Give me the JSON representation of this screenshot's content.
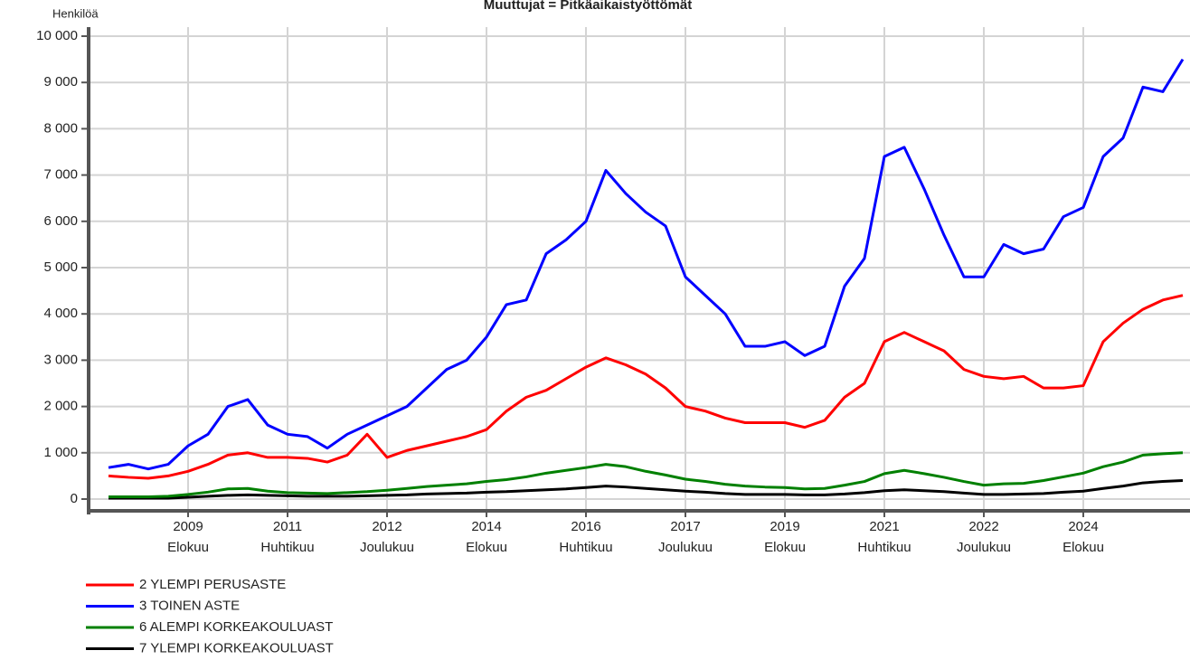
{
  "chart_data": {
    "type": "line",
    "title": "Muuttujat = Pitkäaikaistyöttömät",
    "y_label": "Henkilöä",
    "categories": [
      null,
      null,
      null,
      null,
      [
        "2009",
        "Elokuu"
      ],
      null,
      null,
      null,
      null,
      [
        "2011",
        "Huhtikuu"
      ],
      null,
      null,
      null,
      null,
      [
        "2012",
        "Joulukuu"
      ],
      null,
      null,
      null,
      null,
      [
        "2014",
        "Elokuu"
      ],
      null,
      null,
      null,
      null,
      [
        "2016",
        "Huhtikuu"
      ],
      null,
      null,
      null,
      null,
      [
        "2017",
        "Joulukuu"
      ],
      null,
      null,
      null,
      null,
      [
        "2019",
        "Elokuu"
      ],
      null,
      null,
      null,
      null,
      [
        "2021",
        "Huhtikuu"
      ],
      null,
      null,
      null,
      null,
      [
        "2022",
        "Joulukuu"
      ],
      null,
      null,
      null,
      null,
      [
        "2024",
        "Elokuu"
      ],
      null,
      null,
      null,
      null,
      null
    ],
    "series": [
      {
        "name": "2 YLEMPI PERUSASTE",
        "color": "#ff0000",
        "values": [
          500,
          470,
          450,
          500,
          600,
          750,
          950,
          1000,
          900,
          900,
          880,
          800,
          950,
          1400,
          900,
          1050,
          1150,
          1250,
          1350,
          1500,
          1900,
          2200,
          2350,
          2600,
          2850,
          3050,
          2900,
          2700,
          2400,
          2000,
          1900,
          1750,
          1650,
          1650,
          1650,
          1550,
          1700,
          2200,
          2500,
          3400,
          3600,
          3400,
          3200,
          2800,
          2650,
          2600,
          2650,
          2400,
          2400,
          2450,
          3400,
          3800,
          4100,
          4300,
          4400
        ]
      },
      {
        "name": "3 TOINEN ASTE",
        "color": "#0000ff",
        "values": [
          680,
          750,
          650,
          750,
          1150,
          1400,
          2000,
          2150,
          1600,
          1400,
          1350,
          1100,
          1400,
          1600,
          1800,
          2000,
          2400,
          2800,
          3000,
          3500,
          4200,
          4300,
          5300,
          5600,
          6000,
          7100,
          6600,
          6200,
          5900,
          4800,
          4400,
          4000,
          3300,
          3300,
          3400,
          3100,
          3300,
          4600,
          5200,
          7400,
          7600,
          6700,
          5700,
          4800,
          4800,
          5500,
          5300,
          5400,
          6100,
          6300,
          7400,
          7800,
          8900,
          8800,
          9500
        ]
      },
      {
        "name": "6 ALEMPI KORKEAKOULUAST",
        "color": "#008000",
        "values": [
          50,
          50,
          50,
          60,
          100,
          150,
          220,
          230,
          170,
          140,
          130,
          120,
          140,
          160,
          190,
          230,
          270,
          300,
          330,
          380,
          420,
          480,
          560,
          620,
          680,
          750,
          700,
          600,
          520,
          430,
          380,
          320,
          280,
          260,
          250,
          220,
          230,
          300,
          380,
          550,
          620,
          550,
          470,
          380,
          300,
          330,
          340,
          400,
          480,
          560,
          700,
          800,
          950,
          980,
          1000
        ]
      },
      {
        "name": "7 YLEMPI KORKEAKOULUAST",
        "color": "#000000",
        "values": [
          20,
          20,
          20,
          20,
          40,
          60,
          80,
          90,
          80,
          70,
          60,
          60,
          60,
          70,
          80,
          90,
          110,
          120,
          130,
          150,
          160,
          180,
          200,
          220,
          250,
          280,
          260,
          230,
          200,
          170,
          150,
          120,
          100,
          100,
          100,
          90,
          90,
          110,
          140,
          180,
          200,
          180,
          160,
          130,
          100,
          100,
          110,
          120,
          150,
          170,
          230,
          280,
          350,
          380,
          400
        ]
      }
    ],
    "ylim": [
      0,
      10000
    ],
    "yticks": [
      0,
      {
        "value": 1000,
        "label": "1 000"
      },
      {
        "value": 2000,
        "label": "2 000"
      },
      {
        "value": 3000,
        "label": "3 000"
      },
      {
        "value": 4000,
        "label": "4 000"
      },
      {
        "value": 5000,
        "label": "5 000"
      },
      {
        "value": 6000,
        "label": "6 000"
      },
      {
        "value": 7000,
        "label": "7 000"
      },
      {
        "value": 8000,
        "label": "8 000"
      },
      {
        "value": 9000,
        "label": "9 000"
      },
      {
        "value": 10000,
        "label": "10 000"
      }
    ],
    "grid": true
  }
}
